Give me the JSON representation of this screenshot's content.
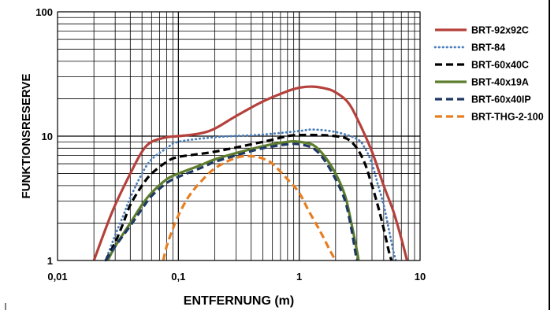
{
  "chart_data": {
    "type": "line",
    "xlabel": "ENTFERNUNG (m)",
    "ylabel": "FUNKTIONSRESERVE",
    "x_scale": "log",
    "y_scale": "log",
    "xlim": [
      0.01,
      10
    ],
    "ylim": [
      1,
      100
    ],
    "x_ticks": [
      {
        "value": 0.01,
        "label": "0,01"
      },
      {
        "value": 0.1,
        "label": "0,1"
      },
      {
        "value": 1,
        "label": "1"
      },
      {
        "value": 10,
        "label": "10"
      }
    ],
    "y_ticks": [
      {
        "value": 1,
        "label": "1"
      },
      {
        "value": 10,
        "label": "10"
      },
      {
        "value": 100,
        "label": "100"
      }
    ],
    "grid": true,
    "legend_position": "right",
    "series": [
      {
        "name": "BRT-92x92C",
        "color": "#b5413c",
        "dash": "solid",
        "points": [
          [
            0.02,
            1
          ],
          [
            0.025,
            1.8
          ],
          [
            0.03,
            2.8
          ],
          [
            0.04,
            5
          ],
          [
            0.05,
            7.5
          ],
          [
            0.06,
            9
          ],
          [
            0.08,
            9.8
          ],
          [
            0.1,
            10
          ],
          [
            0.15,
            10.5
          ],
          [
            0.2,
            11.5
          ],
          [
            0.3,
            14.5
          ],
          [
            0.5,
            19
          ],
          [
            0.8,
            23
          ],
          [
            1,
            24.5
          ],
          [
            1.3,
            25
          ],
          [
            1.7,
            24
          ],
          [
            2,
            22.5
          ],
          [
            2.5,
            19
          ],
          [
            3,
            14
          ],
          [
            4,
            7.5
          ],
          [
            5,
            4
          ],
          [
            6,
            2.5
          ],
          [
            7,
            1.5
          ],
          [
            7.8,
            1
          ]
        ]
      },
      {
        "name": "BRT-84",
        "color": "#4a7ebb",
        "dash": "dotted",
        "points": [
          [
            0.025,
            1
          ],
          [
            0.03,
            1.6
          ],
          [
            0.035,
            2.3
          ],
          [
            0.04,
            3.2
          ],
          [
            0.05,
            5
          ],
          [
            0.06,
            6.5
          ],
          [
            0.08,
            8
          ],
          [
            0.1,
            9
          ],
          [
            0.2,
            9.8
          ],
          [
            0.5,
            10.3
          ],
          [
            1,
            11
          ],
          [
            1.3,
            11.3
          ],
          [
            2,
            10.8
          ],
          [
            3,
            9.5
          ],
          [
            3.5,
            8
          ],
          [
            4,
            6
          ],
          [
            4.5,
            4
          ],
          [
            5,
            2.8
          ],
          [
            5.5,
            1.8
          ],
          [
            6,
            1.2
          ],
          [
            6.3,
            1
          ]
        ]
      },
      {
        "name": "BRT-60x40C",
        "color": "#000000",
        "dash": "dashed",
        "points": [
          [
            0.025,
            1
          ],
          [
            0.03,
            1.4
          ],
          [
            0.035,
            2
          ],
          [
            0.04,
            2.8
          ],
          [
            0.05,
            4
          ],
          [
            0.06,
            5
          ],
          [
            0.08,
            6.2
          ],
          [
            0.1,
            6.8
          ],
          [
            0.2,
            7.5
          ],
          [
            0.5,
            9
          ],
          [
            0.8,
            10
          ],
          [
            1,
            10.2
          ],
          [
            1.5,
            10.2
          ],
          [
            2,
            10
          ],
          [
            2.5,
            9.5
          ],
          [
            3,
            8
          ],
          [
            3.5,
            6
          ],
          [
            4,
            4
          ],
          [
            4.5,
            2.7
          ],
          [
            5,
            1.8
          ],
          [
            5.5,
            1.2
          ],
          [
            5.8,
            1
          ]
        ]
      },
      {
        "name": "BRT-40x19A",
        "color": "#5e7d2c",
        "dash": "solid",
        "points": [
          [
            0.026,
            1
          ],
          [
            0.03,
            1.3
          ],
          [
            0.04,
            2
          ],
          [
            0.05,
            2.8
          ],
          [
            0.06,
            3.5
          ],
          [
            0.08,
            4.5
          ],
          [
            0.1,
            5
          ],
          [
            0.15,
            5.8
          ],
          [
            0.2,
            6.5
          ],
          [
            0.3,
            7.3
          ],
          [
            0.5,
            8.3
          ],
          [
            0.8,
            9
          ],
          [
            1,
            9
          ],
          [
            1.3,
            8.5
          ],
          [
            1.6,
            7
          ],
          [
            2,
            5
          ],
          [
            2.4,
            3.3
          ],
          [
            2.7,
            2
          ],
          [
            3,
            1.2
          ],
          [
            3.1,
            1
          ]
        ]
      },
      {
        "name": "BRT-60x40IP",
        "color": "#1f3864",
        "dash": "dashed",
        "points": [
          [
            0.025,
            1
          ],
          [
            0.03,
            1.3
          ],
          [
            0.04,
            1.9
          ],
          [
            0.05,
            2.6
          ],
          [
            0.06,
            3.3
          ],
          [
            0.08,
            4.2
          ],
          [
            0.1,
            4.7
          ],
          [
            0.15,
            5.5
          ],
          [
            0.2,
            6.2
          ],
          [
            0.3,
            7
          ],
          [
            0.5,
            8
          ],
          [
            0.8,
            8.6
          ],
          [
            1,
            8.6
          ],
          [
            1.3,
            8
          ],
          [
            1.6,
            6.5
          ],
          [
            2,
            4.5
          ],
          [
            2.4,
            3
          ],
          [
            2.7,
            1.8
          ],
          [
            2.9,
            1.2
          ],
          [
            3,
            1
          ]
        ]
      },
      {
        "name": "BRT-THG-2-100",
        "color": "#e67e22",
        "dash": "dashed",
        "points": [
          [
            0.075,
            1
          ],
          [
            0.08,
            1.3
          ],
          [
            0.09,
            1.8
          ],
          [
            0.1,
            2.3
          ],
          [
            0.12,
            3.2
          ],
          [
            0.15,
            4.2
          ],
          [
            0.2,
            5.5
          ],
          [
            0.3,
            6.7
          ],
          [
            0.4,
            6.9
          ],
          [
            0.5,
            6.6
          ],
          [
            0.6,
            6
          ],
          [
            0.8,
            4.5
          ],
          [
            1,
            3.5
          ],
          [
            1.2,
            2.5
          ],
          [
            1.5,
            1.7
          ],
          [
            1.8,
            1.2
          ],
          [
            2,
            1
          ]
        ]
      }
    ]
  }
}
